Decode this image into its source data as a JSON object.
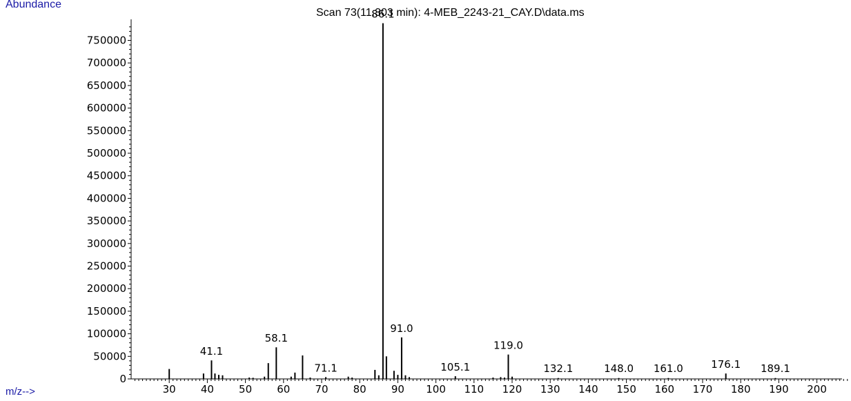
{
  "chart_data": {
    "type": "bar",
    "title": "Scan 73(11.303 min): 4-MEB_2243-21_CAY.D\\data.ms",
    "ylabel": "Abundance",
    "xlabel": "m/z-->",
    "xlim": [
      20,
      210
    ],
    "ylim": [
      0,
      790000
    ],
    "y_ticks": [
      0,
      50000,
      100000,
      150000,
      200000,
      250000,
      300000,
      350000,
      400000,
      450000,
      500000,
      550000,
      600000,
      650000,
      700000,
      750000
    ],
    "x_ticks": [
      30,
      40,
      50,
      60,
      70,
      80,
      90,
      100,
      110,
      120,
      130,
      140,
      150,
      160,
      170,
      180,
      190,
      200
    ],
    "peaks": [
      {
        "mz": 30.0,
        "abundance": 22000
      },
      {
        "mz": 39.0,
        "abundance": 12000
      },
      {
        "mz": 41.1,
        "abundance": 41000
      },
      {
        "mz": 42.0,
        "abundance": 12000
      },
      {
        "mz": 43.0,
        "abundance": 9000
      },
      {
        "mz": 44.0,
        "abundance": 8000
      },
      {
        "mz": 51.0,
        "abundance": 3000
      },
      {
        "mz": 52.0,
        "abundance": 2500
      },
      {
        "mz": 55.0,
        "abundance": 5000
      },
      {
        "mz": 56.0,
        "abundance": 35000
      },
      {
        "mz": 58.1,
        "abundance": 70000
      },
      {
        "mz": 62.0,
        "abundance": 5000
      },
      {
        "mz": 63.0,
        "abundance": 14000
      },
      {
        "mz": 65.0,
        "abundance": 52000
      },
      {
        "mz": 67.0,
        "abundance": 3000
      },
      {
        "mz": 71.1,
        "abundance": 4000
      },
      {
        "mz": 77.0,
        "abundance": 5000
      },
      {
        "mz": 78.0,
        "abundance": 3000
      },
      {
        "mz": 84.0,
        "abundance": 20000
      },
      {
        "mz": 85.0,
        "abundance": 8000
      },
      {
        "mz": 86.1,
        "abundance": 788000
      },
      {
        "mz": 87.0,
        "abundance": 50000
      },
      {
        "mz": 89.0,
        "abundance": 18000
      },
      {
        "mz": 90.0,
        "abundance": 9000
      },
      {
        "mz": 91.0,
        "abundance": 92000
      },
      {
        "mz": 92.0,
        "abundance": 8000
      },
      {
        "mz": 93.0,
        "abundance": 4000
      },
      {
        "mz": 105.1,
        "abundance": 6000
      },
      {
        "mz": 115.0,
        "abundance": 3000
      },
      {
        "mz": 117.0,
        "abundance": 4000
      },
      {
        "mz": 118.0,
        "abundance": 3000
      },
      {
        "mz": 119.0,
        "abundance": 54000
      },
      {
        "mz": 120.0,
        "abundance": 5000
      },
      {
        "mz": 132.1,
        "abundance": 2000
      },
      {
        "mz": 148.0,
        "abundance": 2000
      },
      {
        "mz": 161.0,
        "abundance": 2000
      },
      {
        "mz": 176.1,
        "abundance": 12000
      },
      {
        "mz": 189.1,
        "abundance": 2000
      }
    ],
    "labeled_peaks": [
      {
        "mz": 41.1,
        "label": "41.1"
      },
      {
        "mz": 58.1,
        "label": "58.1"
      },
      {
        "mz": 71.1,
        "label": "71.1"
      },
      {
        "mz": 86.1,
        "label": "86.1"
      },
      {
        "mz": 91.0,
        "label": "91.0"
      },
      {
        "mz": 105.1,
        "label": "105.1"
      },
      {
        "mz": 119.0,
        "label": "119.0"
      },
      {
        "mz": 132.1,
        "label": "132.1"
      },
      {
        "mz": 148.0,
        "label": "148.0"
      },
      {
        "mz": 161.0,
        "label": "161.0"
      },
      {
        "mz": 176.1,
        "label": "176.1"
      },
      {
        "mz": 189.1,
        "label": "189.1"
      }
    ],
    "colors": {
      "axis_label": "#1a1aa6",
      "bars": "#000000"
    },
    "grid": false
  }
}
